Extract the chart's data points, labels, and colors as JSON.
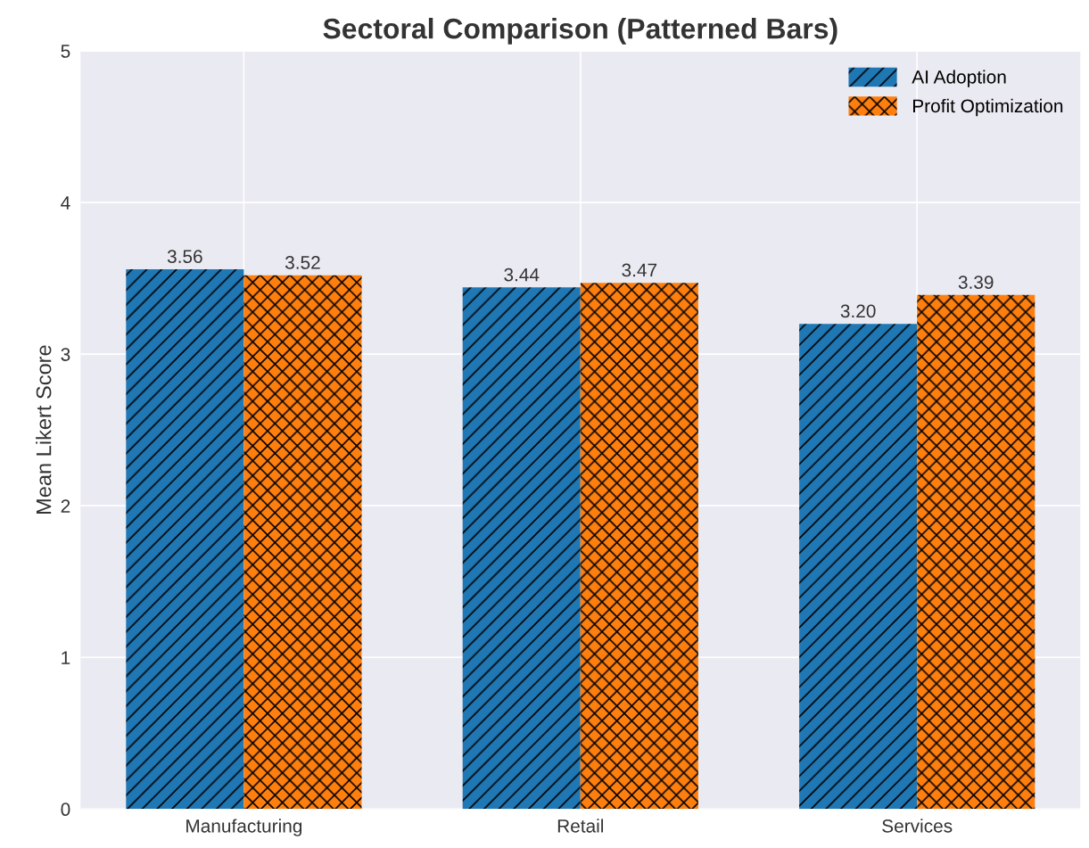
{
  "chart_data": {
    "type": "bar",
    "title": "Sectoral Comparison (Patterned Bars)",
    "ylabel": "Mean Likert Score",
    "categories": [
      "Manufacturing",
      "Retail",
      "Services"
    ],
    "series": [
      {
        "name": "AI Adoption",
        "color": "#1f77b4",
        "values": [
          3.56,
          3.44,
          3.2
        ],
        "value_labels": [
          "3.56",
          "3.44",
          "3.20"
        ]
      },
      {
        "name": "Profit Optimization",
        "color": "#ff7f0e",
        "values": [
          3.52,
          3.47,
          3.39
        ],
        "value_labels": [
          "3.52",
          "3.47",
          "3.39"
        ]
      }
    ],
    "ylim": [
      0,
      5
    ],
    "yticks": [
      0,
      1,
      2,
      3,
      4,
      5
    ],
    "grid": true,
    "legend": "top right"
  }
}
